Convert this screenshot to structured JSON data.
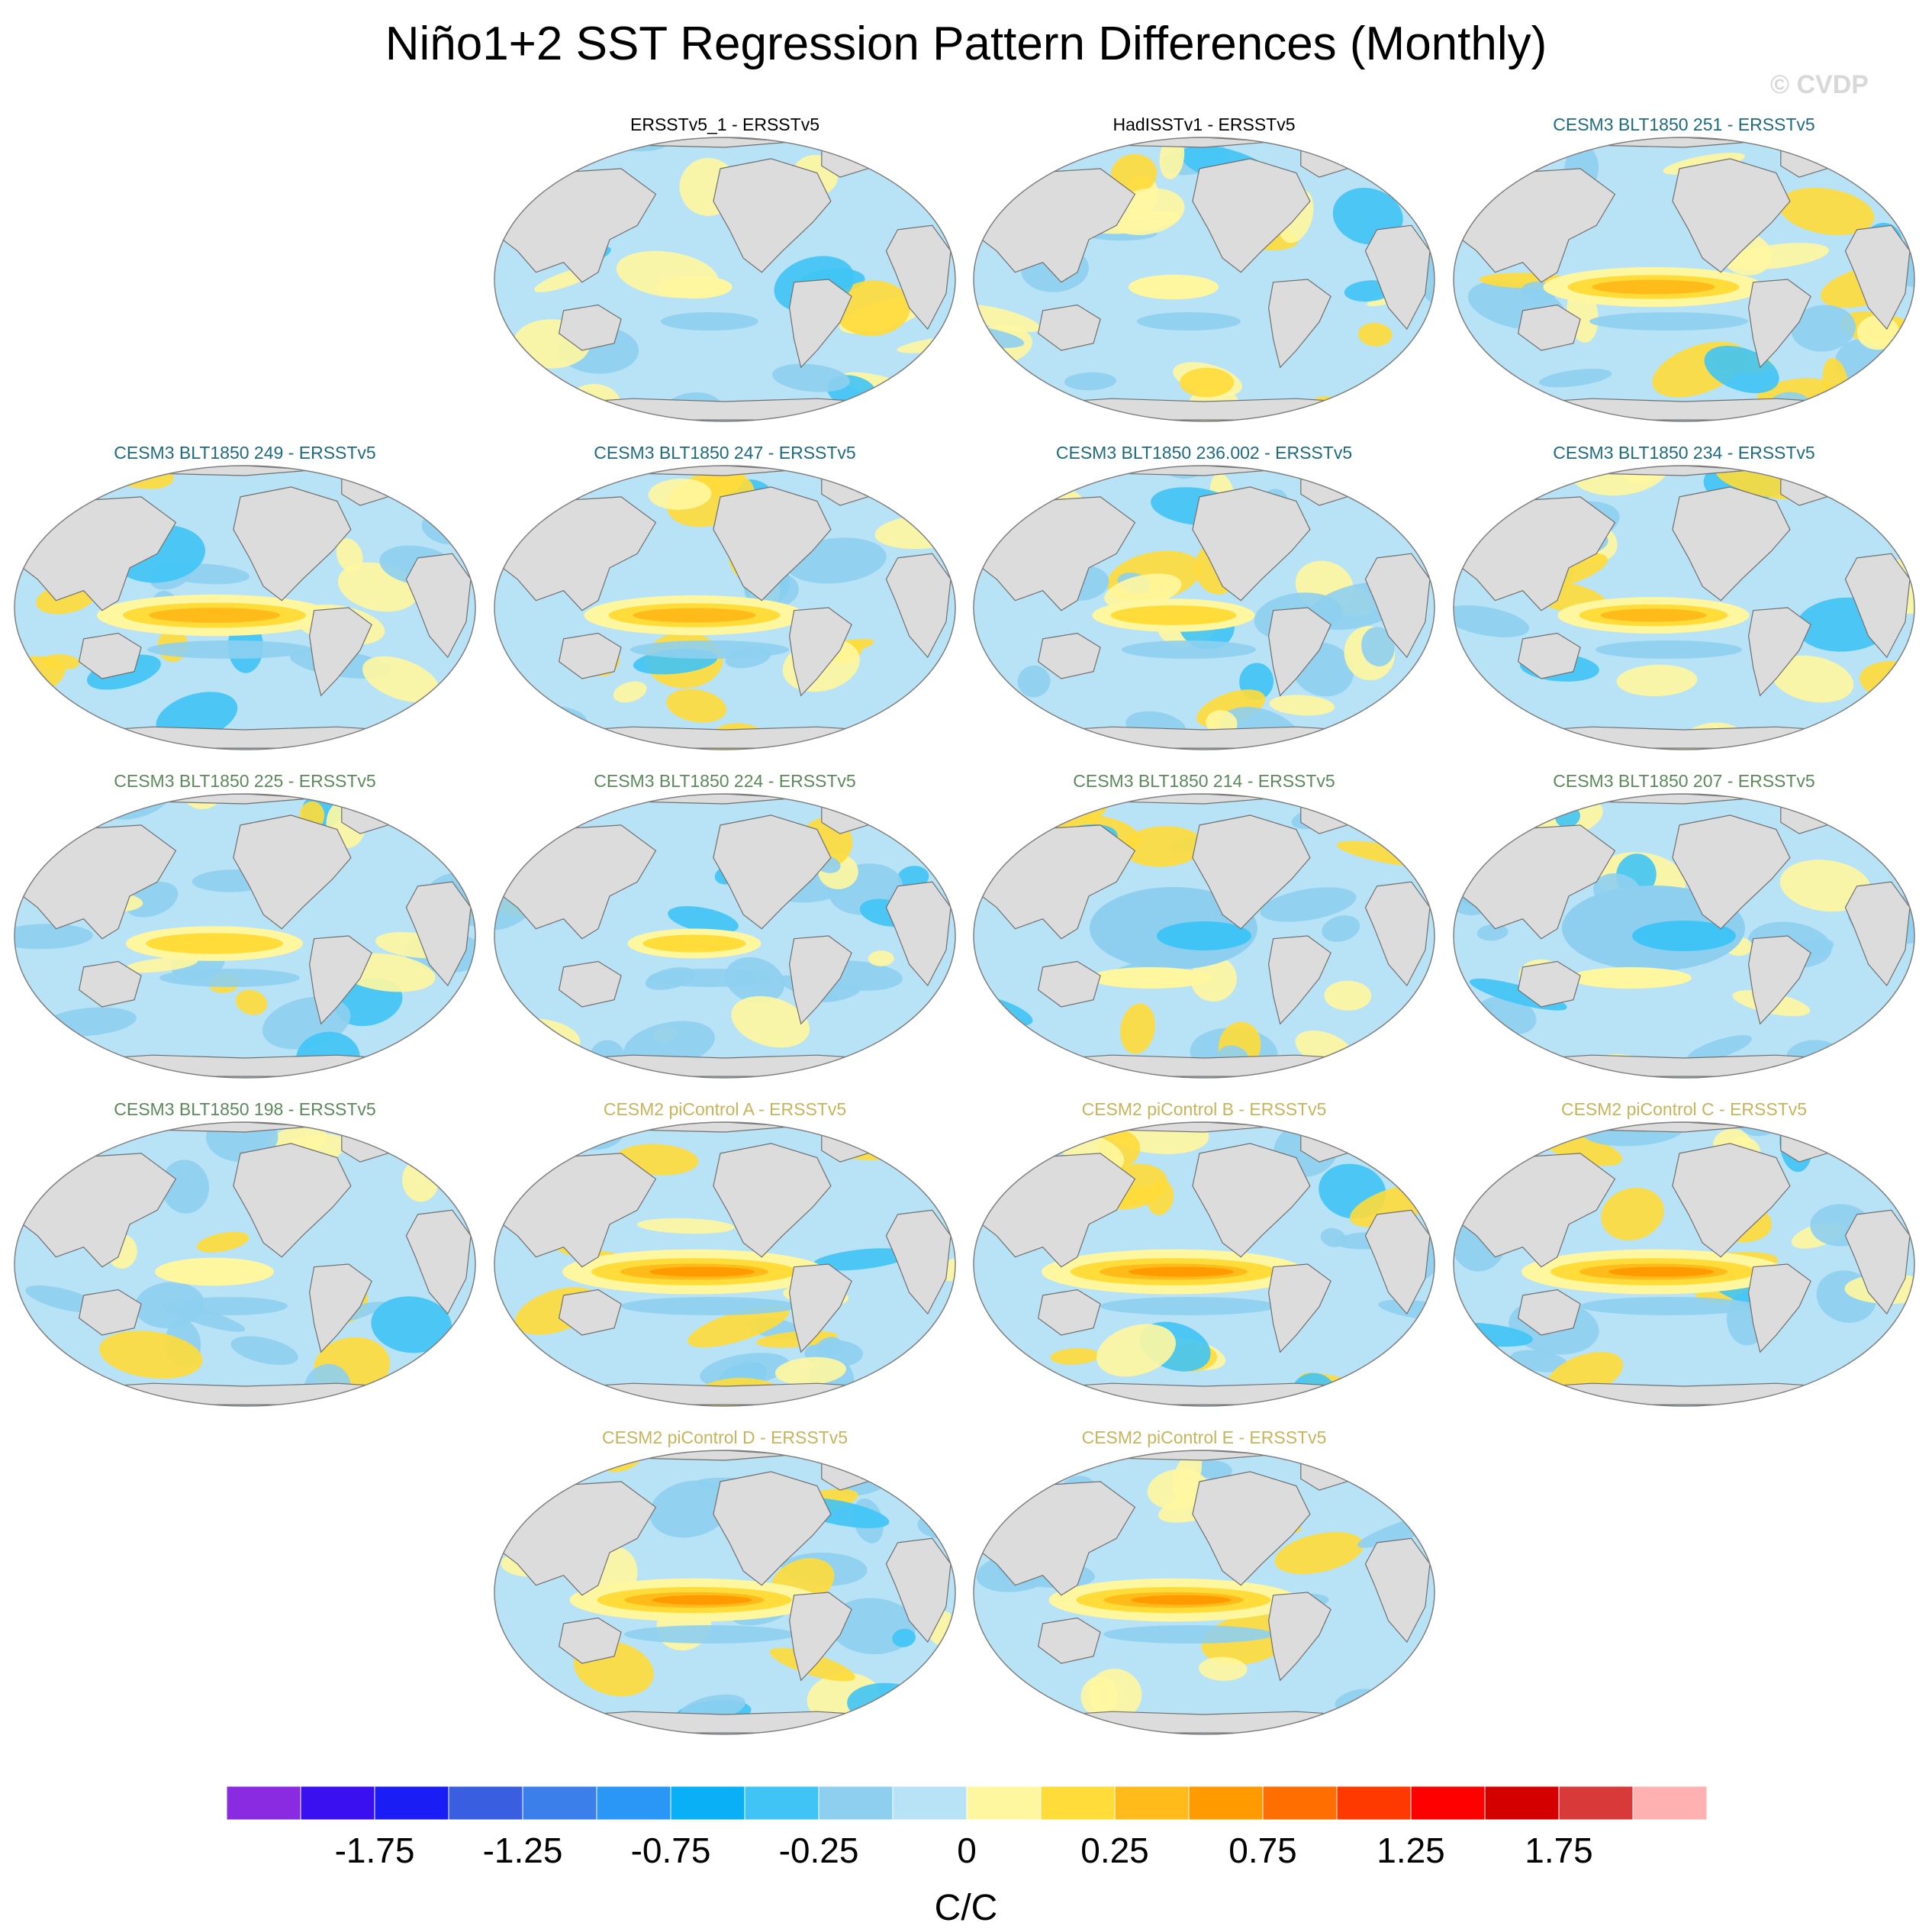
{
  "title": "Niño1+2 SST Regression Pattern Differences (Monthly)",
  "watermark": "© CVDP",
  "units": "C/C",
  "colors": {
    "land": "#dcdcdc",
    "coast": "#707070",
    "obs_title": "#000000",
    "cesm3_a": "#1d6b80",
    "cesm3_b": "#5a8a5a",
    "cesm2": "#c8b45a"
  },
  "colorbar": {
    "colors": [
      "#8a2be2",
      "#3a10f0",
      "#1a1ef5",
      "#3a5ee0",
      "#3a7fea",
      "#2a96f5",
      "#0ab0f5",
      "#40c4f5",
      "#8ecff0",
      "#b8e2f5",
      "#fff7a0",
      "#ffdc3a",
      "#ffbb1a",
      "#ff9a00",
      "#ff6e00",
      "#ff3a00",
      "#ff0000",
      "#d40000",
      "#d83a3a",
      "#ffb0b0"
    ],
    "tick_labels": [
      {
        "label": "-1.75",
        "index": 2
      },
      {
        "label": "-1.25",
        "index": 4
      },
      {
        "label": "-0.75",
        "index": 6
      },
      {
        "label": "-0.25",
        "index": 8
      },
      {
        "label": "0",
        "index": 10
      },
      {
        "label": "0.25",
        "index": 12
      },
      {
        "label": "0.75",
        "index": 14
      },
      {
        "label": "1.25",
        "index": 16
      },
      {
        "label": "1.75",
        "index": 18
      }
    ]
  },
  "panels": [
    {
      "title": "ERSSTv5_1 - ERSSTv5",
      "group": "obs",
      "strength": 0.05,
      "sign": 1
    },
    {
      "title": "HadISSTv1 - ERSSTv5",
      "group": "obs",
      "strength": 0.1,
      "sign": 1
    },
    {
      "title": "CESM3 BLT1850 251 - ERSSTv5",
      "group": "cesm3_a",
      "strength": 0.55,
      "sign": 1
    },
    {
      "title": "CESM3 BLT1850 249 - ERSSTv5",
      "group": "cesm3_a",
      "strength": 0.6,
      "sign": 1
    },
    {
      "title": "CESM3 BLT1850 247 - ERSSTv5",
      "group": "cesm3_a",
      "strength": 0.55,
      "sign": 1
    },
    {
      "title": "CESM3 BLT1850 236.002 - ERSSTv5",
      "group": "cesm3_a",
      "strength": 0.35,
      "sign": 1
    },
    {
      "title": "CESM3 BLT1850 234 - ERSSTv5",
      "group": "cesm3_a",
      "strength": 0.45,
      "sign": 1
    },
    {
      "title": "CESM3 BLT1850 225 - ERSSTv5",
      "group": "cesm3_b",
      "strength": 0.4,
      "sign": 1
    },
    {
      "title": "CESM3 BLT1850 224 - ERSSTv5",
      "group": "cesm3_b",
      "strength": 0.25,
      "sign": 1
    },
    {
      "title": "CESM3 BLT1850 214 - ERSSTv5",
      "group": "cesm3_b",
      "strength": 0.35,
      "sign": -1
    },
    {
      "title": "CESM3 BLT1850 207 - ERSSTv5",
      "group": "cesm3_b",
      "strength": 0.4,
      "sign": -1
    },
    {
      "title": "CESM3 BLT1850 198 - ERSSTv5",
      "group": "cesm3_b",
      "strength": 0.2,
      "sign": 1
    },
    {
      "title": "CESM2 piControl A - ERSSTv5",
      "group": "cesm2",
      "strength": 0.7,
      "sign": 1
    },
    {
      "title": "CESM2 piControl B - ERSSTv5",
      "group": "cesm2",
      "strength": 0.7,
      "sign": 1
    },
    {
      "title": "CESM2 piControl C - ERSSTv5",
      "group": "cesm2",
      "strength": 0.7,
      "sign": 1
    },
    {
      "title": "CESM2 piControl D - ERSSTv5",
      "group": "cesm2",
      "strength": 0.65,
      "sign": 1
    },
    {
      "title": "CESM2 piControl E - ERSSTv5",
      "group": "cesm2",
      "strength": 0.65,
      "sign": 1
    }
  ]
}
